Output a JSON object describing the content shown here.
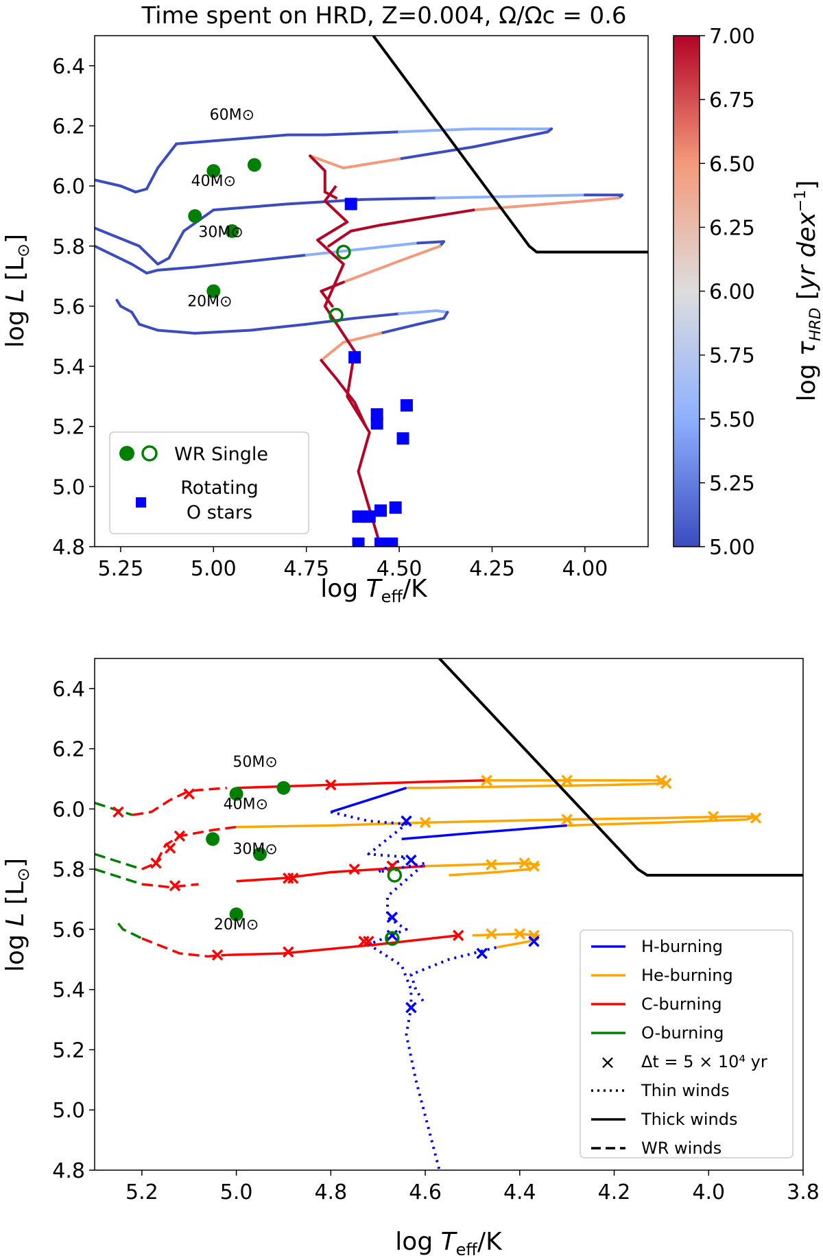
{
  "chart_data": [
    {
      "type": "line",
      "title": "Time spent on HRD, Z=0.004, Ω/Ωc = 0.6",
      "xlabel": "log Teff/K",
      "ylabel": "log L [L⊙]",
      "xlim": [
        5.32,
        3.83
      ],
      "ylim": [
        4.8,
        6.5
      ],
      "xticks": [
        "5.25",
        "5.00",
        "4.75",
        "4.50",
        "4.25",
        "4.00"
      ],
      "yticks": [
        "4.8",
        "5.0",
        "5.2",
        "5.4",
        "5.6",
        "5.8",
        "6.0",
        "6.2",
        "6.4"
      ],
      "colorbar": {
        "label": "log τHRD [yr dex⁻¹]",
        "range": [
          5.0,
          7.0
        ],
        "ticks": [
          "5.00",
          "5.25",
          "5.50",
          "5.75",
          "6.00",
          "6.25",
          "6.50",
          "6.75",
          "7.00"
        ],
        "colormap": [
          "#3b4cc0",
          "#8db0fe",
          "#dddddd",
          "#f49a7b",
          "#b40426"
        ]
      },
      "mass_labels": [
        "60M⊙",
        "40M⊙",
        "30M⊙",
        "20M⊙"
      ],
      "tracks": [
        {
          "name": "60M⊙",
          "x": [
            5.32,
            5.25,
            5.21,
            5.18,
            5.15,
            5.1,
            4.9,
            4.8,
            4.7,
            4.5,
            4.3,
            4.15,
            4.09,
            4.1,
            4.3,
            4.5,
            4.65,
            4.74,
            4.7,
            4.7,
            4.67
          ],
          "y": [
            6.02,
            6.0,
            5.98,
            5.99,
            6.06,
            6.14,
            6.16,
            6.17,
            6.17,
            6.18,
            6.19,
            6.19,
            6.19,
            6.18,
            6.13,
            6.09,
            6.06,
            6.1,
            6.05,
            5.98,
            5.96
          ]
        },
        {
          "name": "40M⊙",
          "x": [
            5.32,
            5.2,
            5.15,
            5.12,
            5.08,
            5.0,
            4.8,
            4.6,
            4.4,
            4.2,
            4.0,
            3.9,
            3.91,
            4.0,
            4.3,
            4.55,
            4.63,
            4.69
          ],
          "y": [
            5.86,
            5.8,
            5.74,
            5.76,
            5.85,
            5.92,
            5.94,
            5.955,
            5.96,
            5.965,
            5.97,
            5.97,
            5.96,
            5.95,
            5.92,
            5.87,
            5.85,
            5.8
          ]
        },
        {
          "name": "30M⊙",
          "x": [
            5.32,
            5.22,
            5.18,
            5.15,
            5.05,
            4.9,
            4.75,
            4.6,
            4.45,
            4.38,
            4.39,
            4.5,
            4.65,
            4.71,
            4.68
          ],
          "y": [
            5.8,
            5.74,
            5.71,
            5.72,
            5.73,
            5.75,
            5.77,
            5.79,
            5.81,
            5.815,
            5.8,
            5.75,
            5.68,
            5.65,
            5.6
          ]
        },
        {
          "name": "20M⊙",
          "x": [
            5.26,
            5.25,
            5.22,
            5.2,
            5.15,
            5.05,
            4.9,
            4.75,
            4.62,
            4.5,
            4.4,
            4.37,
            4.38,
            4.45,
            4.55,
            4.65,
            4.71,
            4.67,
            4.62,
            4.59
          ],
          "y": [
            5.62,
            5.6,
            5.58,
            5.54,
            5.52,
            5.51,
            5.52,
            5.54,
            5.56,
            5.575,
            5.585,
            5.58,
            5.56,
            5.54,
            5.51,
            5.48,
            5.42,
            5.36,
            5.28,
            5.2
          ]
        }
      ],
      "o_star_locus": {
        "x": [
          4.67,
          4.7,
          4.64,
          4.72,
          4.65,
          4.7,
          4.62,
          4.64,
          4.58,
          4.61,
          4.55
        ],
        "y": [
          6.0,
          5.95,
          5.88,
          5.82,
          5.74,
          5.6,
          5.45,
          5.3,
          5.18,
          5.05,
          4.8
        ]
      },
      "wr_single_filled": {
        "x": [
          5.0,
          4.89,
          5.05,
          4.95,
          5.0
        ],
        "y": [
          6.05,
          6.07,
          5.9,
          5.85,
          5.65
        ]
      },
      "wr_single_open": {
        "x": [
          4.65,
          4.67
        ],
        "y": [
          5.78,
          5.57
        ]
      },
      "rotating_o_stars": {
        "x": [
          4.63,
          4.62,
          4.56,
          4.56,
          4.48,
          4.49,
          4.61,
          4.58,
          4.55,
          4.51,
          4.61,
          4.55,
          4.52
        ],
        "y": [
          5.94,
          5.43,
          5.24,
          5.21,
          5.27,
          5.16,
          4.9,
          4.9,
          4.92,
          4.93,
          4.81,
          4.81,
          4.81
        ]
      },
      "legend": [
        {
          "label": "WR Single"
        },
        {
          "label": "Rotating\nO stars"
        }
      ]
    },
    {
      "type": "line",
      "xlabel": "log Teff/K",
      "ylabel": "log L [L⊙]",
      "xlim": [
        5.3,
        3.8
      ],
      "ylim": [
        4.8,
        6.5
      ],
      "xticks": [
        "5.2",
        "5.0",
        "4.8",
        "4.6",
        "4.4",
        "4.2",
        "4.0",
        "3.8"
      ],
      "yticks": [
        "4.8",
        "5.0",
        "5.2",
        "5.4",
        "5.6",
        "5.8",
        "6.0",
        "6.2",
        "6.4"
      ],
      "mass_labels": [
        "50M⊙",
        "40M⊙",
        "30M⊙",
        "20M⊙"
      ],
      "phase_colors": {
        "H-burning": "#0000ff",
        "He-burning": "#ffa500",
        "C-burning": "#ff0000",
        "O-burning": "#008000"
      },
      "segments": [
        {
          "phase": "O-burning",
          "wind": "wr",
          "x": [
            5.3,
            5.26,
            5.22
          ],
          "y": [
            6.02,
            6.0,
            5.98
          ]
        },
        {
          "phase": "C-burning",
          "wind": "wr",
          "x": [
            5.22,
            5.18,
            5.14,
            5.1,
            5.02
          ],
          "y": [
            5.98,
            5.99,
            6.03,
            6.06,
            6.07
          ]
        },
        {
          "phase": "C-burning",
          "wind": "thick",
          "x": [
            5.0,
            4.8,
            4.6,
            4.47
          ],
          "y": [
            6.07,
            6.08,
            6.09,
            6.095
          ]
        },
        {
          "phase": "He-burning",
          "wind": "thick",
          "x": [
            4.47,
            4.3,
            4.1,
            4.09,
            4.2,
            4.4,
            4.6,
            4.64
          ],
          "y": [
            6.095,
            6.095,
            6.095,
            6.085,
            6.08,
            6.075,
            6.07,
            6.07
          ]
        },
        {
          "phase": "H-burning",
          "wind": "thick",
          "x": [
            4.64,
            4.7,
            4.8
          ],
          "y": [
            6.07,
            6.04,
            5.99
          ]
        },
        {
          "phase": "O-burning",
          "wind": "wr",
          "x": [
            5.3,
            5.24,
            5.2
          ],
          "y": [
            5.85,
            5.82,
            5.8
          ]
        },
        {
          "phase": "C-burning",
          "wind": "wr",
          "x": [
            5.2,
            5.17,
            5.15,
            5.12,
            5.05,
            5.0
          ],
          "y": [
            5.8,
            5.82,
            5.88,
            5.91,
            5.93,
            5.94
          ]
        },
        {
          "phase": "He-burning",
          "wind": "thick",
          "x": [
            5.0,
            4.8,
            4.6,
            4.3,
            4.1,
            3.95,
            3.9,
            3.92,
            4.1,
            4.3
          ],
          "y": [
            5.94,
            5.945,
            5.955,
            5.965,
            5.97,
            5.975,
            5.975,
            5.965,
            5.955,
            5.945
          ]
        },
        {
          "phase": "H-burning",
          "wind": "thick",
          "x": [
            4.3,
            4.5,
            4.65
          ],
          "y": [
            5.945,
            5.92,
            5.9
          ]
        },
        {
          "phase": "O-burning",
          "wind": "wr",
          "x": [
            5.3,
            5.24,
            5.2
          ],
          "y": [
            5.8,
            5.77,
            5.75
          ]
        },
        {
          "phase": "C-burning",
          "wind": "wr",
          "x": [
            5.2,
            5.14,
            5.08
          ],
          "y": [
            5.75,
            5.74,
            5.75
          ]
        },
        {
          "phase": "C-burning",
          "wind": "thick",
          "x": [
            5.0,
            4.9,
            4.8,
            4.7,
            4.6
          ],
          "y": [
            5.76,
            5.77,
            5.79,
            5.8,
            5.81
          ]
        },
        {
          "phase": "He-burning",
          "wind": "thick",
          "x": [
            4.6,
            4.5,
            4.4,
            4.36,
            4.38,
            4.45,
            4.55
          ],
          "y": [
            5.81,
            5.815,
            5.82,
            5.815,
            5.8,
            5.79,
            5.78
          ]
        },
        {
          "phase": "O-burning",
          "wind": "wr",
          "x": [
            5.25,
            5.24,
            5.2
          ],
          "y": [
            5.62,
            5.6,
            5.57
          ]
        },
        {
          "phase": "C-burning",
          "wind": "wr",
          "x": [
            5.2,
            5.12,
            5.06,
            5.02
          ],
          "y": [
            5.57,
            5.52,
            5.51,
            5.515
          ]
        },
        {
          "phase": "C-burning",
          "wind": "thick",
          "x": [
            5.02,
            4.9,
            4.7,
            4.53
          ],
          "y": [
            5.515,
            5.52,
            5.55,
            5.58
          ]
        },
        {
          "phase": "He-burning",
          "wind": "thick",
          "x": [
            4.5,
            4.4,
            4.36,
            4.38,
            4.45
          ],
          "y": [
            5.58,
            5.585,
            5.58,
            5.56,
            5.54
          ]
        },
        {
          "phase": "H-burning",
          "wind": "thin",
          "x": [
            4.8,
            4.72,
            4.64,
            4.72,
            4.64,
            4.7,
            4.6,
            4.68,
            4.68,
            4.64,
            4.72,
            4.65,
            4.63,
            4.63,
            4.64,
            4.62,
            4.6,
            4.57
          ],
          "y": [
            5.99,
            5.96,
            5.95,
            5.85,
            5.84,
            5.79,
            5.82,
            5.71,
            5.64,
            5.6,
            5.55,
            5.48,
            5.4,
            5.34,
            5.25,
            5.1,
            4.98,
            4.8
          ]
        },
        {
          "phase": "H-burning",
          "wind": "thin",
          "x": [
            4.45,
            4.55,
            4.63,
            4.62,
            4.6
          ],
          "y": [
            5.54,
            5.5,
            5.45,
            5.4,
            5.35
          ]
        }
      ],
      "time_markers": [
        {
          "phase": "C-burning",
          "x": [
            5.25,
            5.1,
            4.8,
            5.14,
            5.12,
            5.17,
            4.88,
            4.75,
            4.67,
            5.13,
            4.89,
            4.73,
            5.04,
            4.89,
            4.72,
            4.53
          ],
          "y": [
            5.99,
            6.05,
            6.08,
            5.87,
            5.91,
            5.82,
            5.77,
            5.8,
            5.81,
            5.745,
            5.77,
            5.56,
            5.515,
            5.525,
            5.56,
            5.58
          ]
        },
        {
          "phase": "He-burning",
          "x": [
            4.47,
            4.3,
            4.1,
            4.09,
            4.6,
            4.3,
            3.99,
            3.9,
            4.46,
            4.39,
            4.37,
            4.46,
            4.4,
            4.37
          ],
          "y": [
            6.095,
            6.095,
            6.095,
            6.085,
            5.955,
            5.965,
            5.975,
            5.97,
            5.815,
            5.82,
            5.81,
            5.585,
            5.585,
            5.58
          ]
        },
        {
          "phase": "H-burning",
          "x": [
            4.64,
            4.63,
            4.67,
            4.67,
            4.63,
            4.48,
            4.37
          ],
          "y": [
            5.96,
            5.83,
            5.64,
            5.58,
            5.34,
            5.52,
            5.56
          ]
        }
      ],
      "wr_single_filled": {
        "x": [
          5.0,
          4.9,
          5.05,
          4.95,
          5.0
        ],
        "y": [
          6.05,
          6.07,
          5.9,
          5.85,
          5.65
        ]
      },
      "wr_single_open": {
        "x": [
          4.665,
          4.67
        ],
        "y": [
          5.78,
          5.57
        ]
      },
      "legend": [
        {
          "label": "H-burning"
        },
        {
          "label": "He-burning"
        },
        {
          "label": "C-burning"
        },
        {
          "label": "O-burning"
        },
        {
          "label": "Δt = 5 × 10⁴ yr"
        },
        {
          "label": "Thin winds"
        },
        {
          "label": "Thick winds"
        },
        {
          "label": "WR winds"
        }
      ]
    }
  ]
}
